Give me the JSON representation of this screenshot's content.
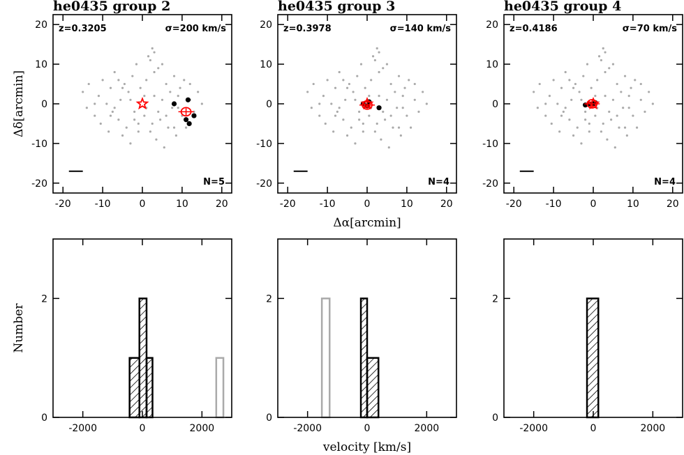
{
  "chart_data": [
    {
      "type": "scatter",
      "title": "he0435 group 2",
      "redshift": "z=0.3205",
      "dispersion": "σ=200 km/s",
      "count": "N=5",
      "ylabel": "Δδ[arcmin]",
      "xlim": [
        -22.5,
        22.5
      ],
      "ylim": [
        -22.5,
        22.5
      ],
      "xticks": [
        -20,
        -10,
        0,
        10,
        20
      ],
      "yticks": [
        -20,
        -10,
        0,
        10,
        20
      ],
      "field": {
        "color": "#aaaaaa",
        "x": [
          -15,
          -14,
          -13.5,
          -12,
          -11,
          -10.5,
          -10,
          -9,
          -8.5,
          -8,
          -7.5,
          -7,
          -6,
          -5.5,
          -5,
          -4.5,
          -4,
          -3.5,
          -3,
          -2.5,
          -2,
          -1.5,
          -1,
          -0.5,
          0.5,
          1,
          1.5,
          2,
          2.5,
          3,
          3.5,
          4,
          4.5,
          5,
          5.5,
          6,
          6.5,
          7,
          7.5,
          8,
          8.5,
          9,
          9.5,
          10,
          10.5,
          11,
          12,
          13,
          14,
          15,
          -12,
          -8,
          -6,
          -3,
          -1,
          1,
          2,
          4,
          6,
          8,
          -5,
          -2,
          3,
          5,
          9,
          12,
          0.5,
          2.5,
          3,
          -7
        ],
        "y": [
          3,
          -1,
          5,
          -3,
          2,
          -5,
          6,
          0,
          -7,
          4,
          -2,
          8,
          -4,
          1,
          -8,
          5,
          -6,
          3,
          -10,
          7,
          -2,
          10,
          -5,
          4,
          -3,
          6,
          12,
          -7,
          14,
          2,
          -9,
          9,
          -4,
          1,
          -11,
          5,
          -6,
          3,
          -1,
          7,
          -8,
          2,
          4,
          -3,
          6,
          -6,
          1,
          -2,
          3,
          0,
          0,
          -3,
          6,
          1,
          -7,
          -1,
          11,
          -2,
          -3,
          -6,
          4,
          -4,
          13,
          10,
          -1,
          5,
          2,
          -5,
          8,
          -1
        ]
      },
      "series": [
        {
          "color": "#000000",
          "x": [
            8,
            11.5,
            13,
            11,
            11.8
          ],
          "y": [
            0,
            1,
            -3,
            -4,
            -5
          ]
        }
      ],
      "bcg": {
        "x": 0,
        "y": 0,
        "color": "#ff0000"
      },
      "centroid": {
        "x": 11,
        "y": -2,
        "color": "#ff0000"
      }
    },
    {
      "type": "scatter",
      "title": "he0435 group 3",
      "redshift": "z=0.3978",
      "dispersion": "σ=140 km/s",
      "count": "N=4",
      "xlabel": "Δα[arcmin]",
      "xlim": [
        -22.5,
        22.5
      ],
      "ylim": [
        -22.5,
        22.5
      ],
      "xticks": [
        -20,
        -10,
        0,
        10,
        20
      ],
      "yticks": [
        -20,
        -10,
        0,
        10,
        20
      ],
      "series": [
        {
          "color": "#000000",
          "x": [
            -1,
            0,
            0.5,
            3
          ],
          "y": [
            0,
            -0.5,
            0.5,
            -1
          ]
        }
      ],
      "bcg": {
        "x": 0,
        "y": 0,
        "color": "#ff0000"
      },
      "centroid": {
        "x": 0,
        "y": -0.3,
        "color": "#ff0000"
      }
    },
    {
      "type": "scatter",
      "title": "he0435 group 4",
      "redshift": "z=0.4186",
      "dispersion": "σ=70 km/s",
      "count": "N=4",
      "xlim": [
        -22.5,
        22.5
      ],
      "ylim": [
        -22.5,
        22.5
      ],
      "xticks": [
        -20,
        -10,
        0,
        10,
        20
      ],
      "yticks": [
        -20,
        -10,
        0,
        10,
        20
      ],
      "series": [
        {
          "color": "#000000",
          "x": [
            -2,
            -1,
            0,
            0.5
          ],
          "y": [
            -0.3,
            0,
            0,
            0.3
          ]
        }
      ],
      "bcg": {
        "x": 0,
        "y": 0,
        "color": "#ff0000"
      },
      "centroid": {
        "x": -0.3,
        "y": 0,
        "color": "#ff0000"
      }
    },
    {
      "type": "histogram",
      "ylabel": "Number",
      "xlim": [
        -3000,
        3000
      ],
      "ylim": [
        0,
        3
      ],
      "xticks": [
        -2000,
        0,
        2000
      ],
      "yticks": [
        0,
        2
      ],
      "series": [
        {
          "color": "#000000",
          "hatch": true,
          "bins": [
            -430,
            -100,
            140,
            340
          ],
          "counts": [
            1,
            2,
            1
          ]
        },
        {
          "color": "#aaaaaa",
          "hatch": false,
          "bins": [
            2480,
            2720
          ],
          "counts": [
            1
          ]
        }
      ]
    },
    {
      "type": "histogram",
      "xlabel": "velocity [km/s]",
      "xlim": [
        -3000,
        3000
      ],
      "ylim": [
        0,
        3
      ],
      "xticks": [
        -2000,
        0,
        2000
      ],
      "yticks": [
        0,
        2
      ],
      "series": [
        {
          "color": "#000000",
          "hatch": true,
          "bins": [
            -210,
            0,
            380
          ],
          "counts": [
            2,
            1
          ]
        },
        {
          "color": "#aaaaaa",
          "hatch": false,
          "bins": [
            -1520,
            -1260
          ],
          "counts": [
            2
          ]
        }
      ]
    },
    {
      "type": "histogram",
      "xlim": [
        -3000,
        3000
      ],
      "ylim": [
        0,
        3
      ],
      "xticks": [
        -2000,
        0,
        2000
      ],
      "yticks": [
        0,
        2
      ],
      "series": [
        {
          "color": "#000000",
          "hatch": true,
          "bins": [
            -210,
            170
          ],
          "counts": [
            2
          ]
        }
      ]
    }
  ]
}
